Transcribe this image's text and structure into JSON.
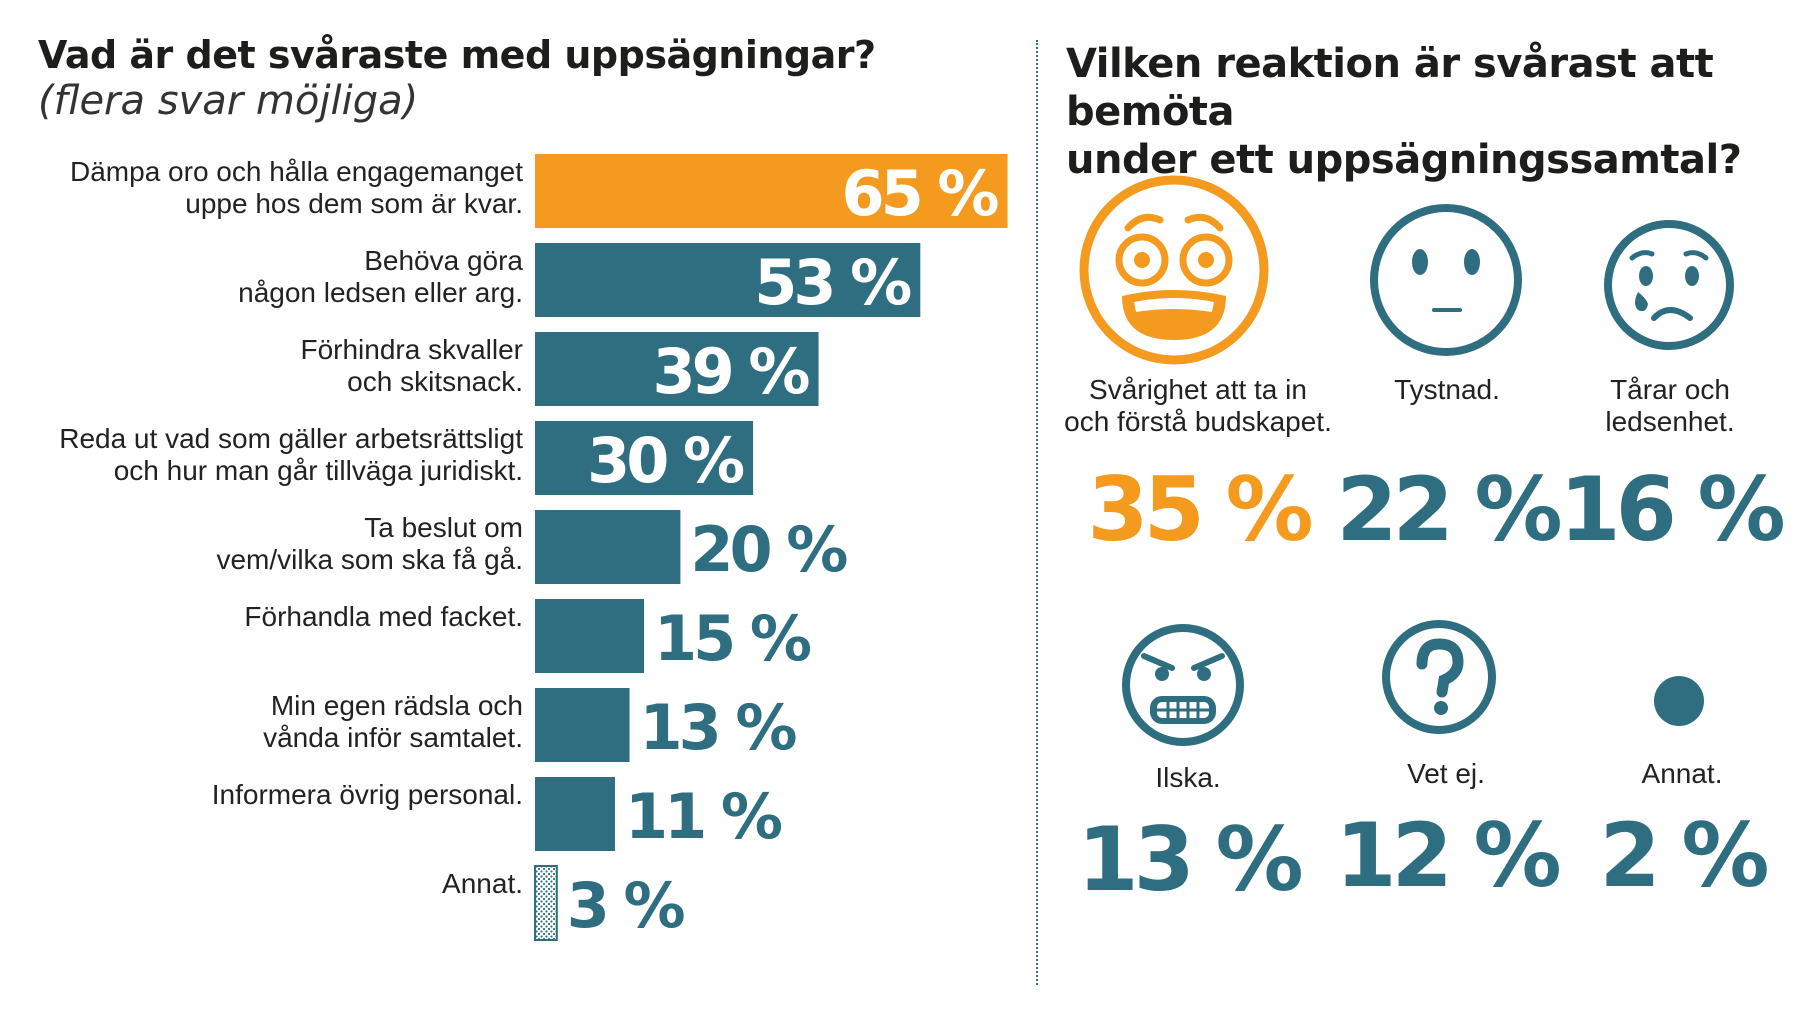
{
  "left": {
    "title": "Vad är det svåraste med uppsägningar?",
    "subtitle": "(flera svar möjliga)"
  },
  "right": {
    "title": "Vilken reaktion är svårast att bemöta\nunder ett uppsägningssamtal?"
  },
  "colors": {
    "orange": "#f39a1f",
    "teal": "#2e6e80"
  },
  "chart_data": [
    {
      "type": "bar",
      "orientation": "horizontal",
      "title": "Vad är det svåraste med uppsägningar?",
      "subtitle": "(flera svar möjliga)",
      "categories": [
        "Dämpa oro och hålla engagemanget\nuppe hos dem som är kvar.",
        "Behöva göra\nnågon ledsen eller arg.",
        "Förhindra skvaller\noch skitsnack.",
        "Reda ut vad som gäller arbetsrättsligt\noch hur man går tillväga juridiskt.",
        "Ta beslut om\nvem/vilka som ska få gå.",
        "Förhandla med facket.",
        "Min egen rädsla och\nvånda inför samtalet.",
        "Informera övrig personal.",
        "Annat."
      ],
      "values": [
        65,
        53,
        39,
        30,
        20,
        15,
        13,
        11,
        3
      ],
      "value_labels": [
        "65 %",
        "53 %",
        "39 %",
        "30 %",
        "20 %",
        "15 %",
        "13 %",
        "11 %",
        "3 %"
      ],
      "unit": "%",
      "highlight_color": "#f39a1f",
      "bar_color": "#2e6e80",
      "highlight_index": 0,
      "hatched_index": 8,
      "grid": false
    },
    {
      "type": "table",
      "title": "Vilken reaktion är svårast att bemöta under ett uppsägningssamtal?",
      "items": [
        {
          "label": "Svårighet att ta in\noch förstå budskapet.",
          "value": 35,
          "value_label": "35 %",
          "icon": "anxious-face-icon",
          "color": "#f39a1f"
        },
        {
          "label": "Tystnad.",
          "value": 22,
          "value_label": "22 %",
          "icon": "neutral-face-icon",
          "color": "#2e6e80"
        },
        {
          "label": "Tårar och\nledsenhet.",
          "value": 16,
          "value_label": "16 %",
          "icon": "crying-face-icon",
          "color": "#2e6e80"
        },
        {
          "label": "Ilska.",
          "value": 13,
          "value_label": "13 %",
          "icon": "angry-face-icon",
          "color": "#2e6e80"
        },
        {
          "label": "Vet ej.",
          "value": 12,
          "value_label": "12 %",
          "icon": "question-mark-icon",
          "color": "#2e6e80"
        },
        {
          "label": "Annat.",
          "value": 2,
          "value_label": "2 %",
          "icon": "dot-icon",
          "color": "#2e6e80"
        }
      ]
    }
  ]
}
